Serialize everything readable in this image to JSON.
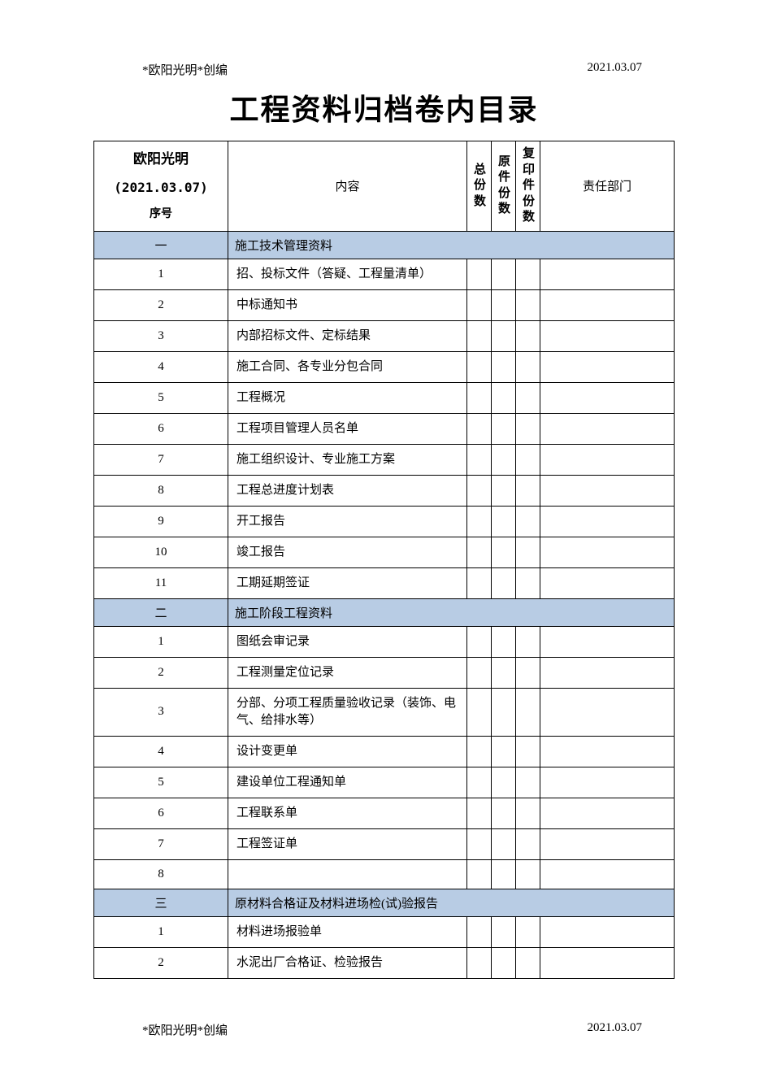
{
  "header": {
    "left": "*欧阳光明*创编",
    "right": "2021.03.07"
  },
  "title": "工程资料归档卷内目录",
  "table": {
    "headers": {
      "seq_name": "欧阳光明",
      "seq_date": "(2021.03.07)",
      "seq_label": "序号",
      "content": "内容",
      "total_copies": "总份数",
      "original_copies": "原件份数",
      "copy_copies": "复印件份数",
      "dept": "责任部门"
    },
    "section_bg": "#b8cce4",
    "border_color": "#000000",
    "sections": [
      {
        "num": "一",
        "title": "施工技术管理资料",
        "rows": [
          {
            "seq": "1",
            "content": "招、投标文件（答疑、工程量清单）",
            "c1": "",
            "c2": "",
            "c3": "",
            "dept": ""
          },
          {
            "seq": "2",
            "content": "中标通知书",
            "c1": "",
            "c2": "",
            "c3": "",
            "dept": ""
          },
          {
            "seq": "3",
            "content": "内部招标文件、定标结果",
            "c1": "",
            "c2": "",
            "c3": "",
            "dept": ""
          },
          {
            "seq": "4",
            "content": "施工合同、各专业分包合同",
            "c1": "",
            "c2": "",
            "c3": "",
            "dept": ""
          },
          {
            "seq": "5",
            "content": "工程概况",
            "c1": "",
            "c2": "",
            "c3": "",
            "dept": ""
          },
          {
            "seq": "6",
            "content": "工程项目管理人员名单",
            "c1": "",
            "c2": "",
            "c3": "",
            "dept": ""
          },
          {
            "seq": "7",
            "content": "施工组织设计、专业施工方案",
            "c1": "",
            "c2": "",
            "c3": "",
            "dept": ""
          },
          {
            "seq": "8",
            "content": "工程总进度计划表",
            "c1": "",
            "c2": "",
            "c3": "",
            "dept": ""
          },
          {
            "seq": "9",
            "content": "开工报告",
            "c1": "",
            "c2": "",
            "c3": "",
            "dept": ""
          },
          {
            "seq": "10",
            "content": "竣工报告",
            "c1": "",
            "c2": "",
            "c3": "",
            "dept": ""
          },
          {
            "seq": "11",
            "content": "工期延期签证",
            "c1": "",
            "c2": "",
            "c3": "",
            "dept": ""
          }
        ]
      },
      {
        "num": "二",
        "title": "施工阶段工程资料",
        "rows": [
          {
            "seq": "1",
            "content": "图纸会审记录",
            "c1": "",
            "c2": "",
            "c3": "",
            "dept": ""
          },
          {
            "seq": "2",
            "content": "工程测量定位记录",
            "c1": "",
            "c2": "",
            "c3": "",
            "dept": ""
          },
          {
            "seq": "3",
            "content": "分部、分项工程质量验收记录（装饰、电气、给排水等）",
            "c1": "",
            "c2": "",
            "c3": "",
            "dept": ""
          },
          {
            "seq": "4",
            "content": "设计变更单",
            "c1": "",
            "c2": "",
            "c3": "",
            "dept": ""
          },
          {
            "seq": "5",
            "content": "建设单位工程通知单",
            "c1": "",
            "c2": "",
            "c3": "",
            "dept": ""
          },
          {
            "seq": "6",
            "content": "工程联系单",
            "c1": "",
            "c2": "",
            "c3": "",
            "dept": ""
          },
          {
            "seq": "7",
            "content": "工程签证单",
            "c1": "",
            "c2": "",
            "c3": "",
            "dept": ""
          },
          {
            "seq": "8",
            "content": "",
            "c1": "",
            "c2": "",
            "c3": "",
            "dept": ""
          }
        ]
      },
      {
        "num": "三",
        "title": "原材料合格证及材料进场检(试)验报告",
        "rows": [
          {
            "seq": "1",
            "content": "材料进场报验单",
            "c1": "",
            "c2": "",
            "c3": "",
            "dept": ""
          },
          {
            "seq": "2",
            "content": "水泥出厂合格证、检验报告",
            "c1": "",
            "c2": "",
            "c3": "",
            "dept": ""
          }
        ]
      }
    ]
  },
  "footer": {
    "left": "*欧阳光明*创编",
    "right": "2021.03.07"
  }
}
